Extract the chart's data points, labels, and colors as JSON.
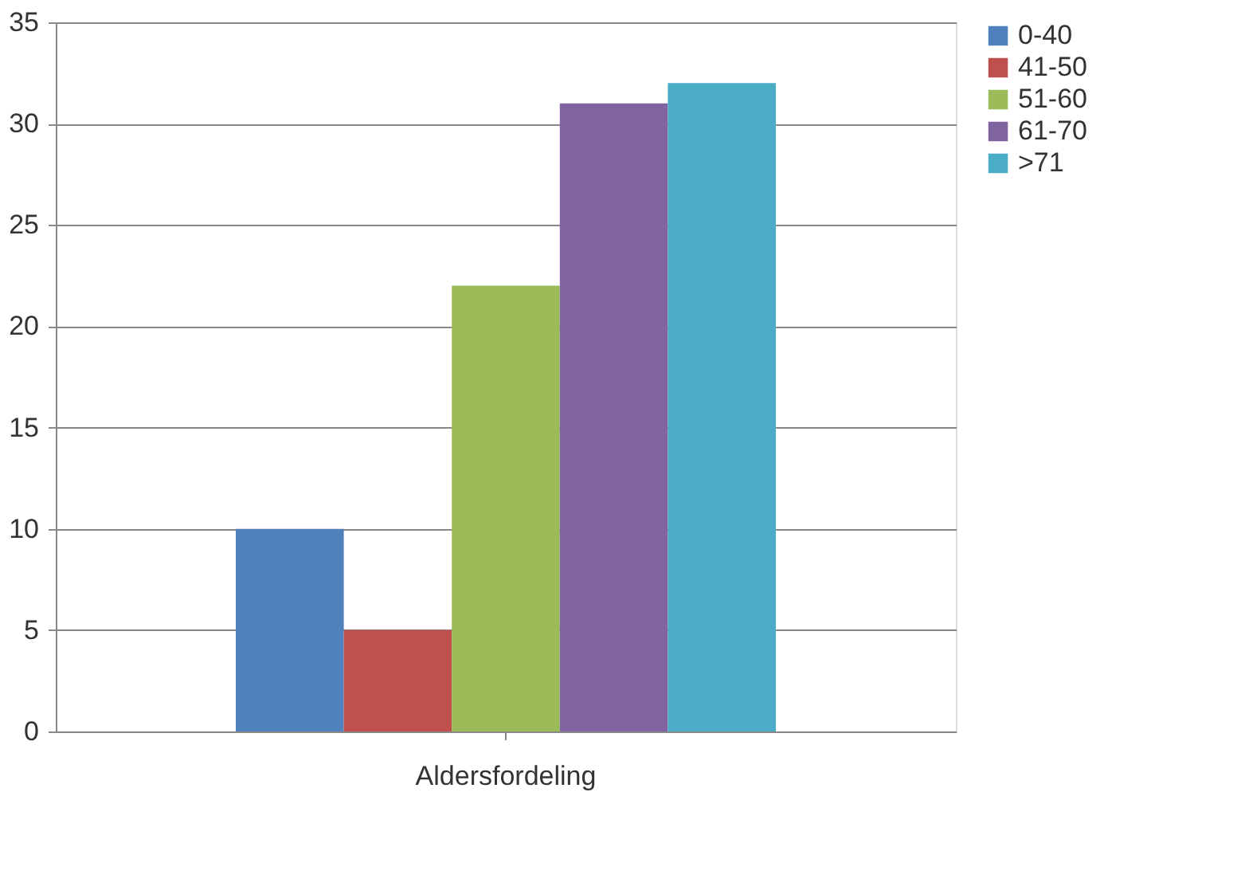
{
  "chart_data": {
    "type": "bar",
    "categories": [
      "Aldersfordeling"
    ],
    "series": [
      {
        "name": "0-40",
        "color": "#4f81bd",
        "values": [
          10
        ]
      },
      {
        "name": "41-50",
        "color": "#c0504d",
        "values": [
          5
        ]
      },
      {
        "name": "51-60",
        "color": "#9bbb59",
        "values": [
          22
        ]
      },
      {
        "name": "61-70",
        "color": "#8064a2",
        "values": [
          31
        ]
      },
      {
        "name": ">71",
        "color": "#4bacc6",
        "values": [
          32
        ]
      }
    ],
    "ylim": [
      0,
      35
    ],
    "yticks": [
      0,
      5,
      10,
      15,
      20,
      25,
      30,
      35
    ],
    "grid": "y",
    "legend": "right"
  }
}
